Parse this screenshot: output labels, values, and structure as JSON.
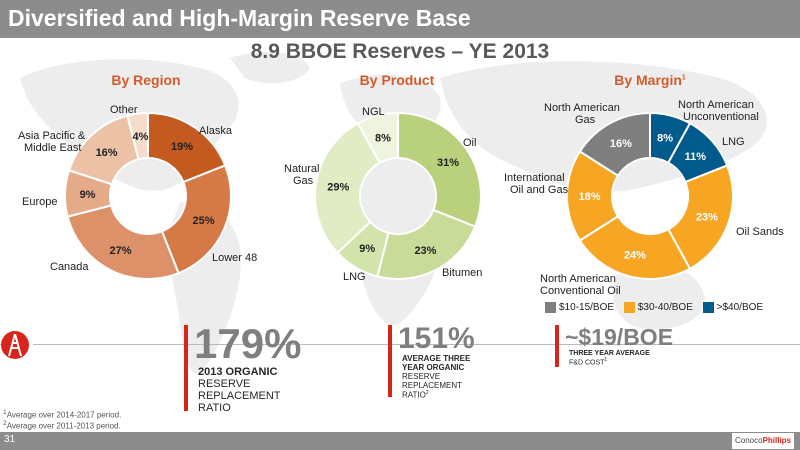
{
  "header": {
    "title": "Diversified and High-Margin Reserve Base"
  },
  "main_title": "8.9 BBOE Reserves – YE 2013",
  "sections": {
    "region": "By Region",
    "product": "By Product",
    "margin": "By Margin",
    "margin_sup": "1"
  },
  "colors": {
    "accent": "#d25c2a",
    "header_bg": "#8c8c8c",
    "stat_bar": "#d9241b",
    "low": "#7f7f7f",
    "mid": "#f6a623",
    "high": "#005a8c"
  },
  "chart_data": [
    {
      "type": "pie",
      "title": "By Region",
      "categories": [
        "Alaska",
        "Lower 48",
        "Canada",
        "Europe",
        "Asia Pacific & Middle East",
        "Other"
      ],
      "values": [
        19,
        25,
        27,
        9,
        16,
        4
      ],
      "value_labels": [
        "19%",
        "25%",
        "27%",
        "9%",
        "16%",
        "4%"
      ],
      "colors": [
        "#c55a21",
        "#d57a47",
        "#dd9169",
        "#e5aa88",
        "#ecc1a6",
        "#f4dccb"
      ]
    },
    {
      "type": "pie",
      "title": "By Product",
      "categories": [
        "Oil",
        "Bitumen",
        "LNG",
        "Natural Gas",
        "NGL"
      ],
      "values": [
        31,
        23,
        9,
        29,
        8
      ],
      "value_labels": [
        "31%",
        "23%",
        "9%",
        "29%",
        "8%"
      ],
      "colors": [
        "#b9d17c",
        "#c8db98",
        "#d3e3ac",
        "#e1ecc5",
        "#eef4de"
      ]
    },
    {
      "type": "pie",
      "title": "By Margin",
      "categories": [
        "North American Unconventional",
        "LNG",
        "Oil Sands",
        "North American Conventional Oil",
        "International Oil and Gas",
        "North American Gas"
      ],
      "values": [
        8,
        11,
        23,
        24,
        18,
        16
      ],
      "value_labels": [
        "8%",
        "11%",
        "23%",
        "24%",
        "18%",
        "16%"
      ],
      "colors": [
        "#005a8c",
        "#005a8c",
        "#f6a623",
        "#f6a623",
        "#f6a623",
        "#7f7f7f"
      ],
      "legend": [
        "$10-15/BOE",
        "$30-40/BOE",
        ">$40/BOE"
      ],
      "legend_colors": [
        "#7f7f7f",
        "#f6a623",
        "#005a8c"
      ]
    }
  ],
  "stats": {
    "s1": {
      "big": "179%",
      "l1": "2013 ORGANIC",
      "l2": "RESERVE",
      "l3": "REPLACEMENT",
      "l4": "RATIO"
    },
    "s2": {
      "big": "151%",
      "l1": "AVERAGE THREE",
      "l2": "YEAR ORGANIC",
      "l3": "RESERVE",
      "l4": "REPLACEMENT",
      "l5": "RATIO",
      "sup": "2"
    },
    "s3": {
      "big": "~$19/BOE",
      "l1": "THREE YEAR AVERAGE",
      "l2": "F&D COST",
      "sup": "1"
    }
  },
  "footnotes": {
    "f1_num": "1",
    "f1": "Average over 2014-2017 period.",
    "f2_num": "2",
    "f2": "Average over 2011-2013 period."
  },
  "page_number": "31",
  "logo": {
    "a": "Conoco",
    "b": "Phillips"
  }
}
